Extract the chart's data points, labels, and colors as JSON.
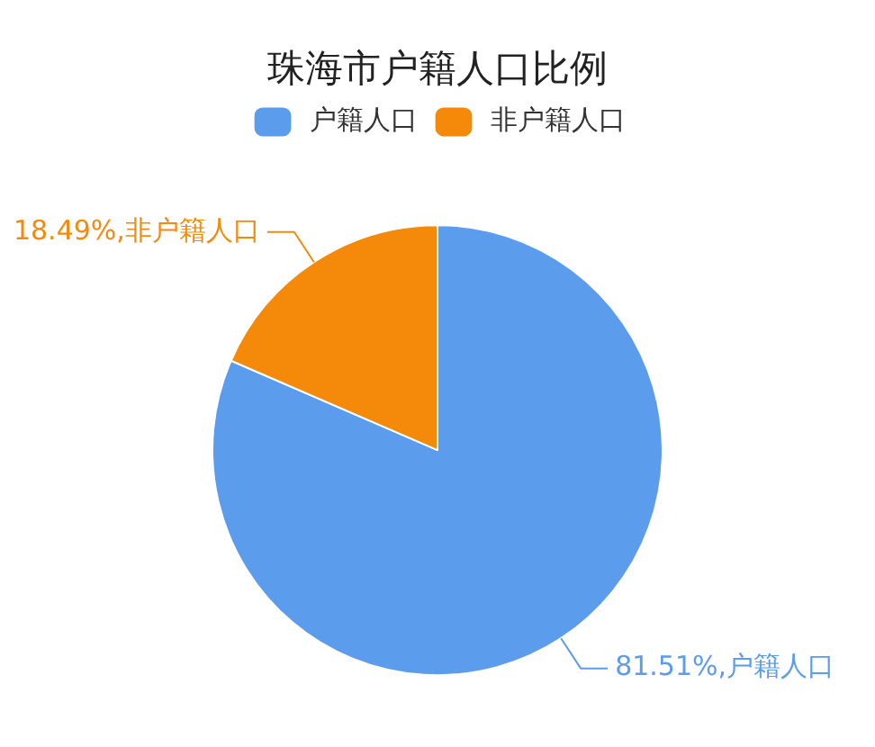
{
  "chart_data": {
    "type": "pie",
    "title": "珠海市户籍人口比例",
    "categories": [
      "户籍人口",
      "非户籍人口"
    ],
    "values": [
      81.51,
      18.49
    ],
    "colors": [
      "#5b9cec",
      "#f5890a"
    ],
    "value_labels": [
      "81.51%,户籍人口",
      "18.49%,非户籍人口"
    ],
    "legend": "top"
  }
}
